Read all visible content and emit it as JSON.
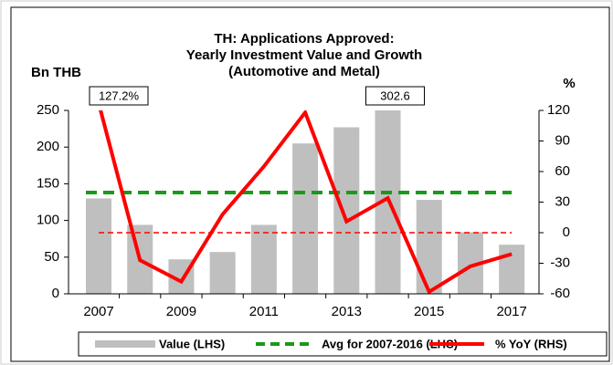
{
  "chart_data": {
    "type": "bar-line",
    "title": "TH: Applications Approved:",
    "subtitle": [
      "Yearly Investment Value and Growth",
      "(Automotive and Metal)"
    ],
    "ylabel": "Bn THB",
    "y2label": "%",
    "x": [
      2007,
      2008,
      2009,
      2010,
      2011,
      2012,
      2013,
      2014,
      2015,
      2016,
      2017
    ],
    "xlim": [
      2006.27,
      2017.66
    ],
    "xticks": [
      2007,
      2009,
      2011,
      2013,
      2015,
      2017
    ],
    "ylim": [
      0,
      250
    ],
    "yticks": [
      0,
      50,
      100,
      150,
      200,
      250
    ],
    "y2lim": [
      -60,
      120
    ],
    "y2ticks": [
      -60,
      -30,
      0,
      30,
      60,
      90,
      120
    ],
    "series": [
      {
        "name": "Value (LHS)",
        "type": "bar",
        "color": "#bfbfbf",
        "values": [
          130,
          94,
          47,
          57,
          94,
          205,
          227,
          302.6,
          128,
          84,
          67
        ],
        "value_labels": [
          null,
          null,
          null,
          null,
          null,
          null,
          null,
          "302.6",
          null,
          null,
          null
        ]
      },
      {
        "name": "Avg for 2007-2016 (LHS)",
        "type": "hline",
        "color": "#1a9a1a",
        "value": 138
      },
      {
        "name": "% YoY (RHS)",
        "type": "line",
        "axis": "y2",
        "color": "#ff0000",
        "values": [
          127.2,
          -27,
          -48,
          18,
          65,
          118,
          11,
          34,
          -58,
          -33,
          -21
        ],
        "value_labels": [
          "127.2%",
          null,
          null,
          null,
          null,
          null,
          null,
          null,
          null,
          null,
          null
        ]
      }
    ],
    "y2_reference": {
      "value": 0,
      "color": "#ff0000"
    }
  }
}
